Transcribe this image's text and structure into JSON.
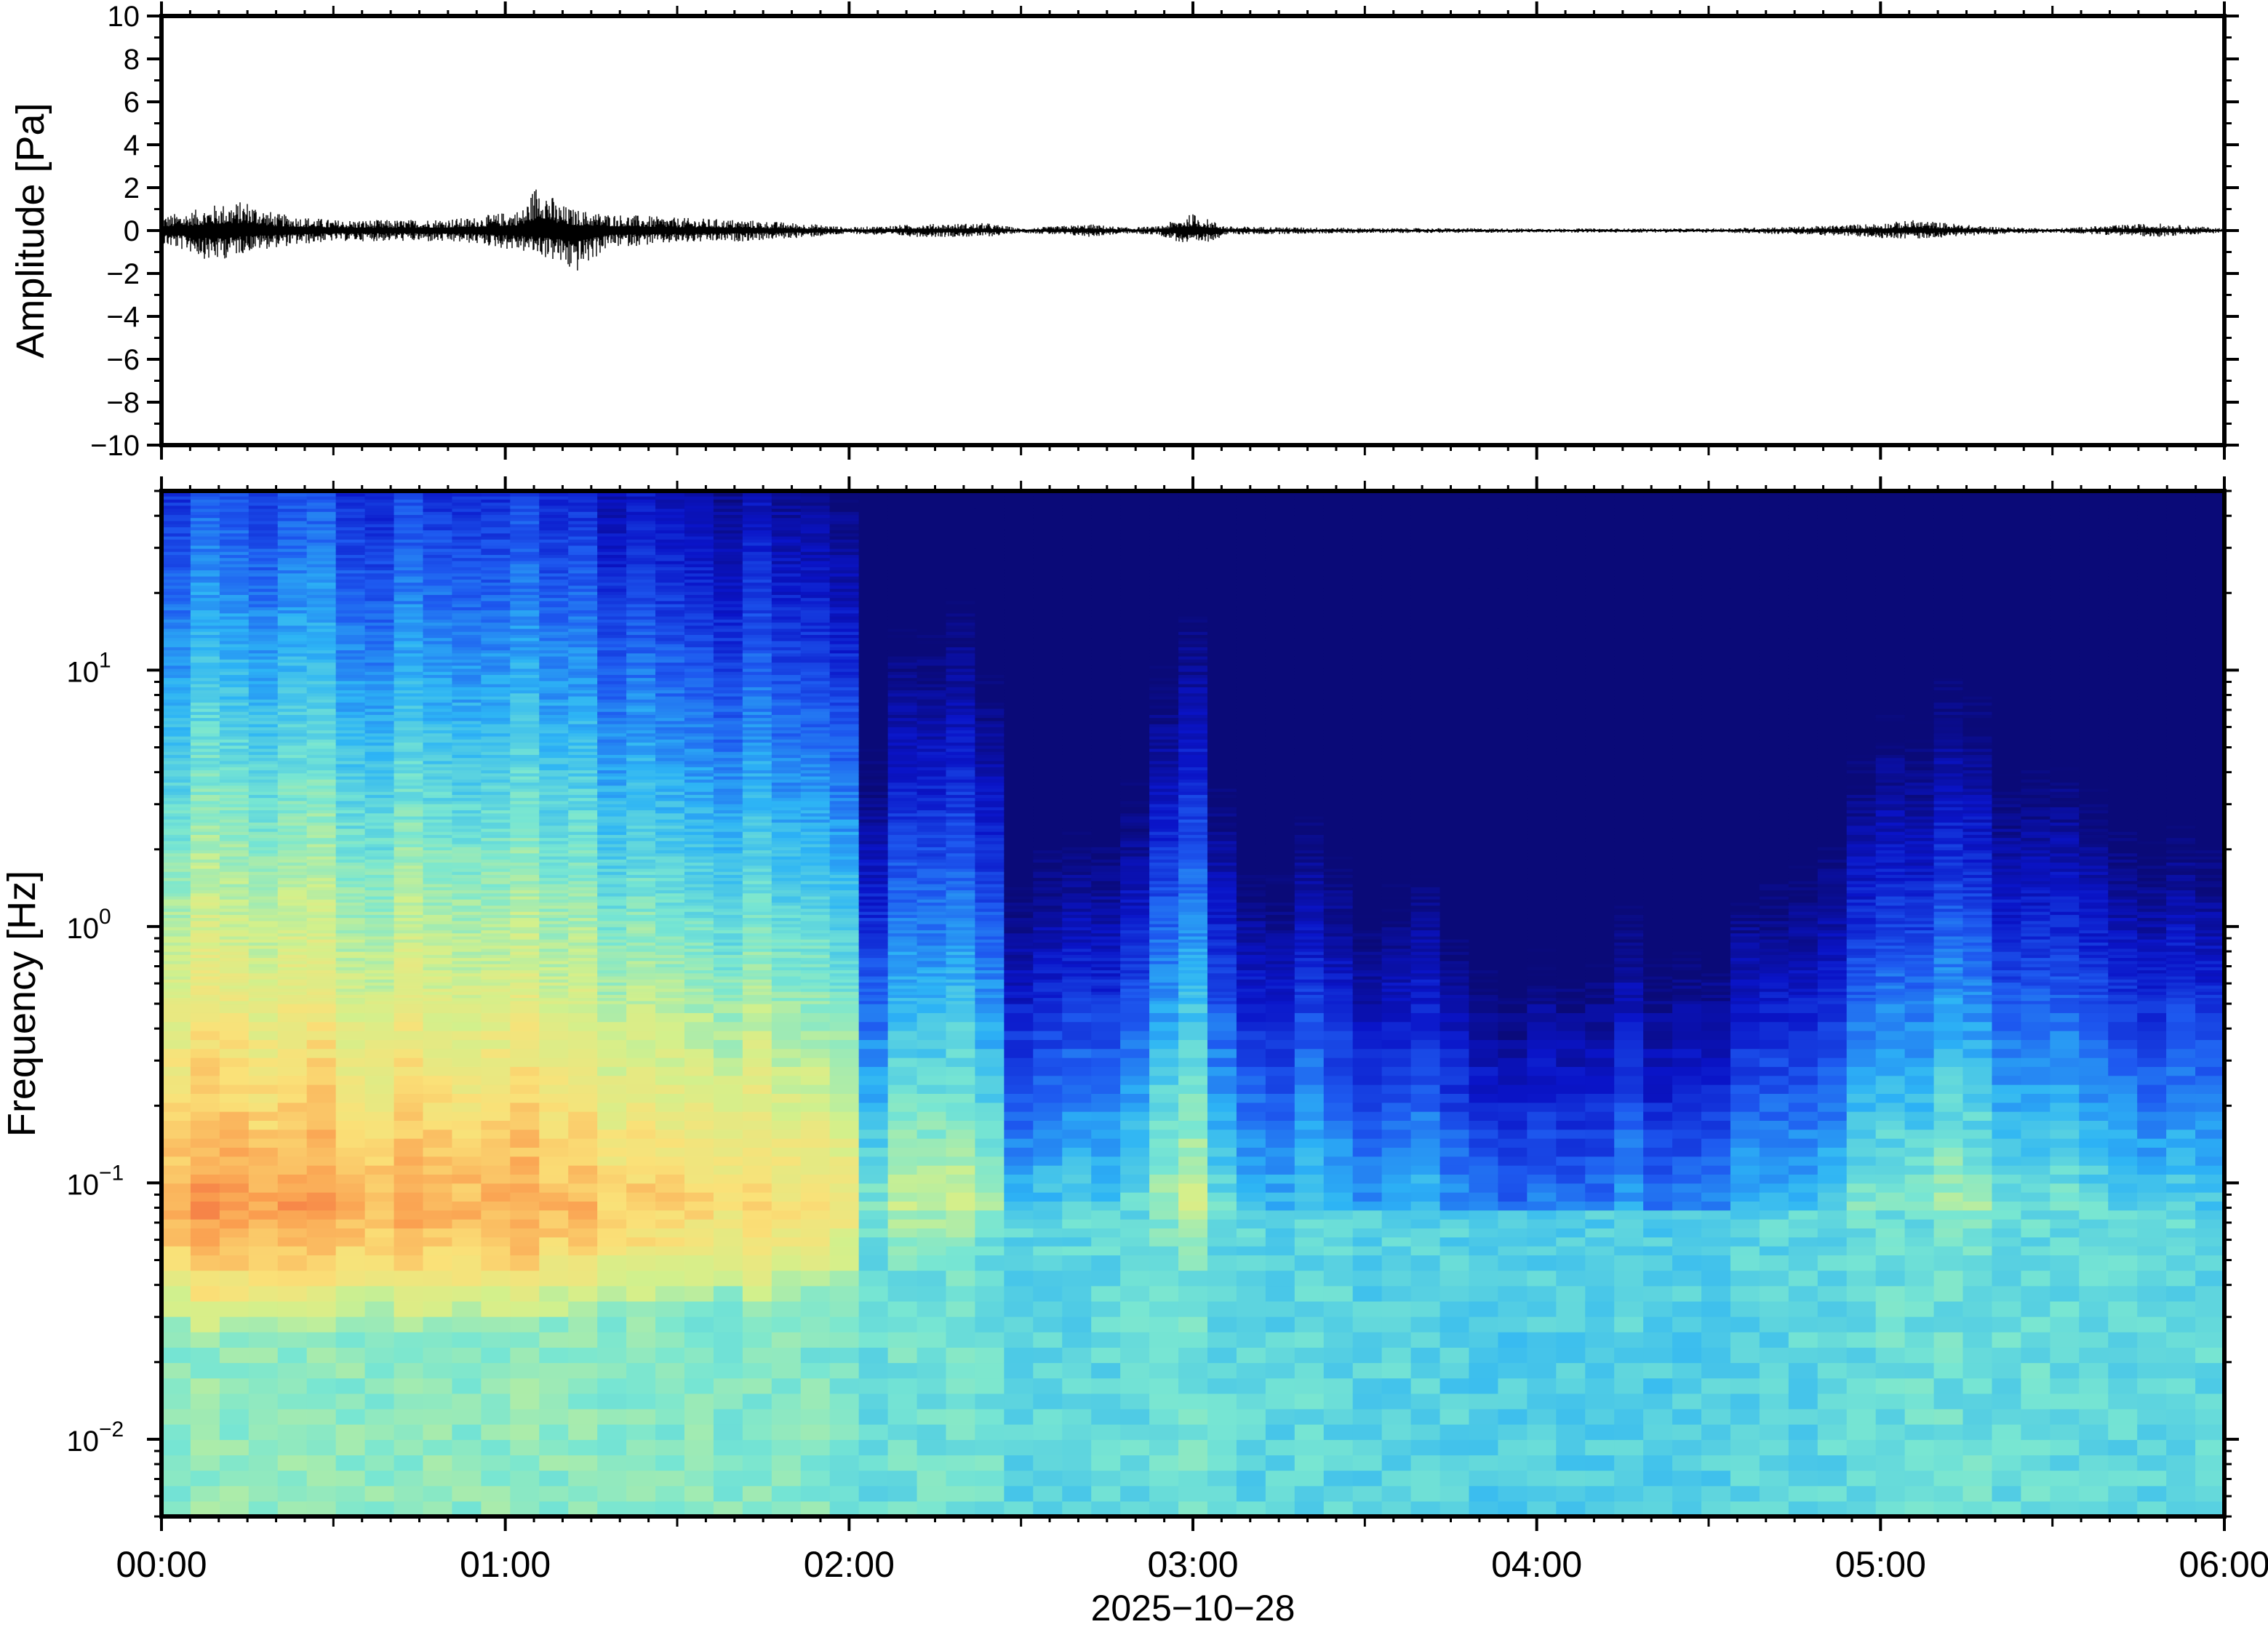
{
  "chart_data": [
    {
      "type": "line",
      "panel": "waveform",
      "ylabel": "Amplitude [Pa]",
      "ylim": [
        -10,
        10
      ],
      "yticks": [
        10,
        8,
        6,
        4,
        2,
        0,
        -2,
        -4,
        -6,
        -8,
        -10
      ],
      "ytick_labels": [
        "10",
        "8",
        "6",
        "4",
        "2",
        "0",
        "−2",
        "−4",
        "−6",
        "−8",
        "−10"
      ],
      "xlim": [
        "00:00",
        "06:00"
      ],
      "envelope": {
        "x_hours": [
          0.0,
          0.08,
          0.15,
          0.25,
          0.33,
          0.5,
          0.7,
          0.9,
          1.05,
          1.1,
          1.15,
          1.2,
          1.3,
          1.5,
          1.7,
          1.9,
          2.0,
          2.2,
          2.4,
          2.5,
          2.7,
          2.8,
          2.9,
          3.0,
          3.1,
          3.5,
          4.0,
          4.5,
          4.8,
          5.0,
          5.1,
          5.3,
          5.5,
          5.8,
          6.0
        ],
        "upper": [
          0.7,
          0.9,
          1.2,
          1.4,
          0.8,
          0.5,
          0.5,
          0.6,
          1.0,
          2.5,
          1.3,
          1.0,
          0.8,
          0.6,
          0.5,
          0.3,
          0.15,
          0.3,
          0.35,
          0.1,
          0.3,
          0.15,
          0.2,
          0.8,
          0.2,
          0.12,
          0.1,
          0.1,
          0.2,
          0.35,
          0.5,
          0.2,
          0.1,
          0.35,
          0.1
        ],
        "lower": [
          -0.7,
          -1.0,
          -1.5,
          -1.0,
          -0.8,
          -0.5,
          -0.5,
          -0.6,
          -1.0,
          -1.2,
          -1.5,
          -2.1,
          -0.8,
          -0.6,
          -0.5,
          -0.3,
          -0.15,
          -0.3,
          -0.3,
          -0.1,
          -0.3,
          -0.15,
          -0.2,
          -0.8,
          -0.2,
          -0.12,
          -0.1,
          -0.1,
          -0.2,
          -0.35,
          -0.4,
          -0.2,
          -0.1,
          -0.3,
          -0.1
        ]
      }
    },
    {
      "type": "heatmap",
      "panel": "spectrogram",
      "ylabel": "Frequency [Hz]",
      "yscale": "log",
      "ylim": [
        0.005,
        50
      ],
      "yticks": [
        0.01,
        0.1,
        1,
        10
      ],
      "ytick_labels": [
        {
          "base": "10",
          "exp": "−2"
        },
        {
          "base": "10",
          "exp": "−1"
        },
        {
          "base": "10",
          "exp": "0"
        },
        {
          "base": "10",
          "exp": "1"
        }
      ],
      "xlabel": "2025−10−28",
      "xlim": [
        "00:00",
        "06:00"
      ],
      "xticks": [
        "00:00",
        "01:00",
        "02:00",
        "03:00",
        "04:00",
        "05:00",
        "06:00"
      ],
      "colormap": "jet",
      "colormap_stops": [
        "#0a0a78",
        "#0a14c8",
        "#1e5af0",
        "#2db4f5",
        "#78e6d2",
        "#d2f08c",
        "#fae178",
        "#faa050",
        "#f05a3c"
      ],
      "column_activity": {
        "x_hours": [
          0.0,
          0.25,
          0.5,
          0.8,
          1.0,
          1.2,
          1.5,
          1.8,
          2.0,
          2.05,
          2.15,
          2.4,
          2.5,
          2.7,
          2.8,
          2.95,
          3.0,
          3.1,
          3.4,
          3.7,
          3.9,
          4.1,
          4.5,
          4.8,
          5.0,
          5.2,
          5.5,
          5.8,
          6.0
        ],
        "relative_level": [
          0.95,
          1.0,
          0.92,
          0.9,
          0.92,
          0.9,
          0.85,
          0.8,
          0.75,
          0.35,
          0.55,
          0.6,
          0.3,
          0.35,
          0.4,
          0.55,
          0.6,
          0.35,
          0.28,
          0.22,
          0.1,
          0.18,
          0.2,
          0.28,
          0.45,
          0.5,
          0.4,
          0.35,
          0.3
        ]
      },
      "spectral_peak_hz": 0.08
    }
  ]
}
